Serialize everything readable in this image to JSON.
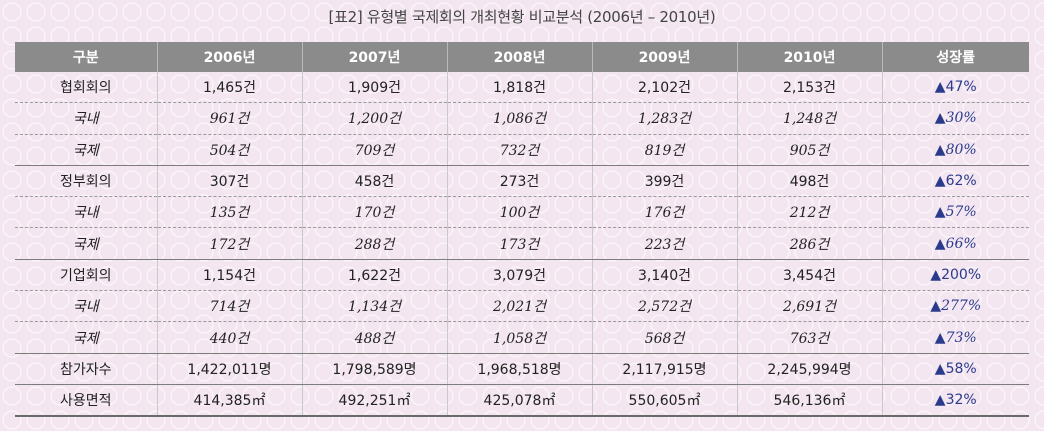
{
  "caption": "[표2] 유형별 국제회의 개최현황 비교분석 (2006년 – 2010년)",
  "headers": [
    "구분",
    "2006년",
    "2007년",
    "2008년",
    "2009년",
    "2010년",
    "성장률"
  ],
  "rows": [
    {
      "label": "협회회의",
      "values": [
        "1,465건",
        "1,909건",
        "1,818건",
        "2,102건",
        "2,153건"
      ],
      "growth": "▲47%"
    },
    {
      "label": "국내",
      "values": [
        "961건",
        "1,200건",
        "1,086건",
        "1,283건",
        "1,248건"
      ],
      "growth": "▲30%"
    },
    {
      "label": "국제",
      "values": [
        "504건",
        "709건",
        "732건",
        "819건",
        "905건"
      ],
      "growth": "▲80%"
    },
    {
      "label": "정부회의",
      "values": [
        "307건",
        "458건",
        "273건",
        "399건",
        "498건"
      ],
      "growth": "▲62%"
    },
    {
      "label": "국내",
      "values": [
        "135건",
        "170건",
        "100건",
        "176건",
        "212건"
      ],
      "growth": "▲57%"
    },
    {
      "label": "국제",
      "values": [
        "172건",
        "288건",
        "173건",
        "223건",
        "286건"
      ],
      "growth": "▲66%"
    },
    {
      "label": "기업회의",
      "values": [
        "1,154건",
        "1,622건",
        "3,079건",
        "3,140건",
        "3,454건"
      ],
      "growth": "▲200%"
    },
    {
      "label": "국내",
      "values": [
        "714건",
        "1,134건",
        "2,021건",
        "2,572건",
        "2,691건"
      ],
      "growth": "▲277%"
    },
    {
      "label": "국제",
      "values": [
        "440건",
        "488건",
        "1,058건",
        "568건",
        "763건"
      ],
      "growth": "▲73%"
    },
    {
      "label": "참가자수",
      "values": [
        "1,422,011명",
        "1,798,589명",
        "1,968,518명",
        "2,117,915명",
        "2,245,994명"
      ],
      "growth": "▲58%"
    },
    {
      "label": "사용면적",
      "values": [
        "414,385㎡",
        "492,251㎡",
        "425,078㎡",
        "550,605㎡",
        "546,136㎡"
      ],
      "growth": "▲32%"
    }
  ],
  "colors": {
    "header_bg": "#8c8b8b",
    "background": "#f3e6f0",
    "growth_text": "#2b3b8c"
  }
}
